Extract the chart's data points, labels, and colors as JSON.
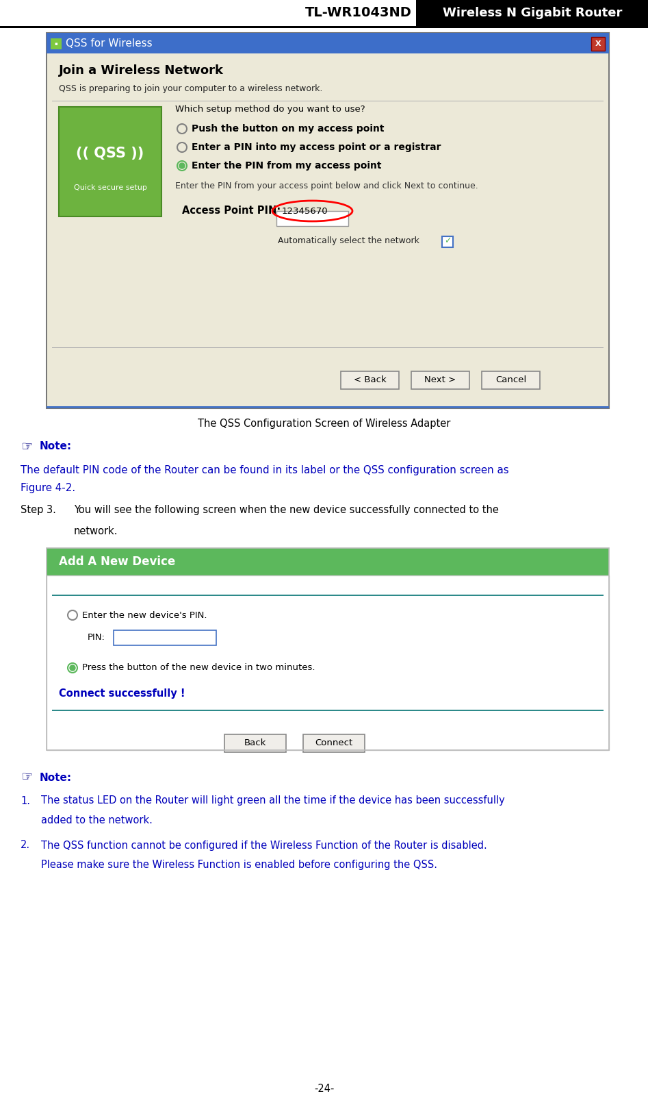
{
  "page_width": 9.47,
  "page_height": 16.16,
  "bg_color": "#ffffff",
  "header_title_left": "TL-WR1043ND",
  "header_title_right": "Wireless N Gigabit Router",
  "figure_caption": "The QSS Configuration Screen of Wireless Adapter",
  "note_icon_color": "#000080",
  "note_label_color": "#0000bb",
  "note_text_color": "#0000bb",
  "note1_line1": "The default PIN code of the Router can be found in its label or the QSS configuration screen as",
  "note1_line2": "Figure 4-2.",
  "step3_line1": "You will see the following screen when the new device successfully connected to the",
  "step3_line2": "network.",
  "add_device_bg": "#5cb85c",
  "add_device_text": "Add A New Device",
  "add_device_text_color": "#ffffff",
  "connect_success_text": "Connect successfully !",
  "connect_success_color": "#0000bb",
  "note2_item1_line1": "The status LED on the Router will light green all the time if the device has been successfully",
  "note2_item1_line2": "added to the network.",
  "note2_item2_line1": "The QSS function cannot be configured if the Wireless Function of the Router is disabled.",
  "note2_item2_line2": "Please make sure the Wireless Function is enabled before configuring the QSS.",
  "page_num": "-24-",
  "qss_dialog_bg": "#dbd8ce",
  "qss_title_bg": "#3d6ec9",
  "qss_title_text": "QSS for Wireless",
  "logo_bg": "#6db33f",
  "logo_text1": "QSS",
  "logo_text2": "Quick secure setup",
  "pin_value": "12345670",
  "radio_opt1": "Push the button on my access point",
  "radio_opt2": "Enter a PIN into my access point or a registrar",
  "radio_opt3": "Enter the PIN from my access point",
  "pin_label": "Access Point PIN:",
  "auto_select_text": "Automatically select the network",
  "join_heading": "Join a Wireless Network",
  "join_subtitle": "QSS is preparing to join your computer to a wireless network.",
  "pin_instruction": "Enter the PIN from your access point below and click Next to continue.",
  "which_method": "Which setup method do you want to use?"
}
